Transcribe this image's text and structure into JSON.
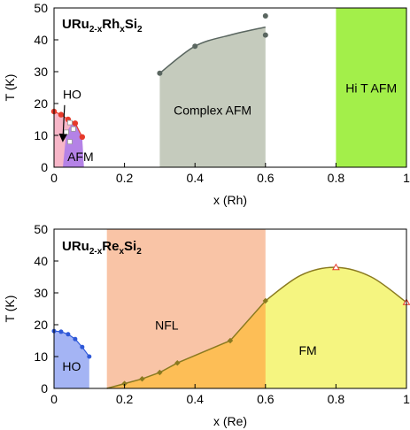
{
  "colors": {
    "ho_top": "#f7b6c8",
    "afm_top": "#b482e6",
    "complex_afm": "#c5cbbd",
    "hi_t_afm": "#a3ef4a",
    "nfl": "#f9c4a6",
    "fm_yellow": "#f5f580",
    "fm_orange": "#fdbe56",
    "ho_bottom": "#a4b4f4",
    "red_marker": "#e63a2a",
    "grey_line": "#5a6660",
    "blue_marker": "#2e58d8",
    "olive_line": "#8a7a20"
  },
  "chart_data": [
    {
      "type": "scatter",
      "title": "URu2-xRhxSi2",
      "title_parts": {
        "a": "URu",
        "b": "2-x",
        "c": "Rh",
        "d": "x",
        "e": "Si",
        "f": "2"
      },
      "xlabel": "x (Rh)",
      "ylabel": "T (K)",
      "xlim": [
        0,
        1
      ],
      "ylim": [
        0,
        50
      ],
      "xticks": [
        "0",
        "0.2",
        "0.4",
        "0.6",
        "0.8",
        "1"
      ],
      "yticks": [
        "0",
        "10",
        "20",
        "30",
        "40",
        "50"
      ],
      "grid": false,
      "regions": [
        {
          "label": "HO",
          "x_range": [
            0,
            0.08
          ]
        },
        {
          "label": "AFM",
          "x_range": [
            0.02,
            0.08
          ]
        },
        {
          "label": "Complex AFM",
          "x_range": [
            0.3,
            0.6
          ]
        },
        {
          "label": "Hi T AFM",
          "x_range": [
            0.8,
            1.0
          ]
        }
      ],
      "series": [
        {
          "points": [
            [
              0.0,
              17.5
            ],
            [
              0.02,
              16.5
            ],
            [
              0.04,
              15.0
            ],
            [
              0.06,
              13.8
            ],
            [
              0.08,
              9.5
            ]
          ]
        },
        {
          "points": [
            [
              0.3,
              29.5
            ],
            [
              0.4,
              38.0
            ],
            [
              0.6,
              47.5
            ],
            [
              0.6,
              41.5
            ]
          ]
        },
        {
          "points": [
            [
              0.035,
              11.0
            ],
            [
              0.045,
              8.0
            ],
            [
              0.055,
              12.0
            ],
            [
              0.045,
              14.0
            ]
          ]
        }
      ]
    },
    {
      "type": "scatter",
      "title": "URu2-xRexSi2",
      "title_parts": {
        "a": "URu",
        "b": "2-x",
        "c": "Re",
        "d": "x",
        "e": "Si",
        "f": "2"
      },
      "xlabel": "x (Re)",
      "ylabel": "T (K)",
      "xlim": [
        0,
        1
      ],
      "ylim": [
        0,
        50
      ],
      "xticks": [
        "0",
        "0.2",
        "0.4",
        "0.6",
        "0.8",
        "1"
      ],
      "yticks": [
        "0",
        "10",
        "20",
        "30",
        "40",
        "50"
      ],
      "grid": false,
      "regions": [
        {
          "label": "HO",
          "x_range": [
            0,
            0.1
          ]
        },
        {
          "label": "NFL",
          "x_range": [
            0.15,
            0.6
          ]
        },
        {
          "label": "FM",
          "x_range": [
            0.15,
            1.0
          ]
        }
      ],
      "series": [
        {
          "points": [
            [
              0.0,
              18.0
            ],
            [
              0.02,
              17.8
            ],
            [
              0.04,
              17.0
            ],
            [
              0.06,
              15.5
            ],
            [
              0.08,
              13.0
            ],
            [
              0.1,
              10.0
            ]
          ]
        },
        {
          "points": [
            [
              0.2,
              1.5
            ],
            [
              0.25,
              3.0
            ],
            [
              0.3,
              5.0
            ],
            [
              0.35,
              8.0
            ],
            [
              0.5,
              15.0
            ],
            [
              0.6,
              27.5
            ]
          ]
        },
        {
          "points": [
            [
              0.8,
              38.0
            ],
            [
              1.0,
              27.0
            ]
          ]
        }
      ]
    }
  ]
}
